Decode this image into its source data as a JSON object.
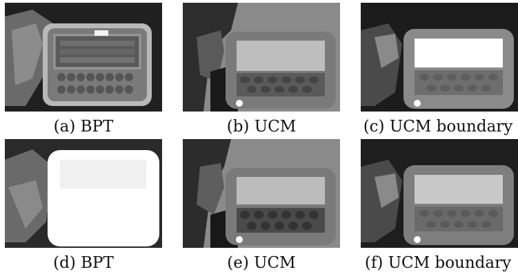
{
  "figure": {
    "panels": [
      {
        "caption": "(a) BPT"
      },
      {
        "caption": "(b) UCM"
      },
      {
        "caption": "(c) UCM boundary"
      },
      {
        "caption": "(d) BPT"
      },
      {
        "caption": "(e) UCM"
      },
      {
        "caption": "(f) UCM boundary"
      }
    ]
  }
}
